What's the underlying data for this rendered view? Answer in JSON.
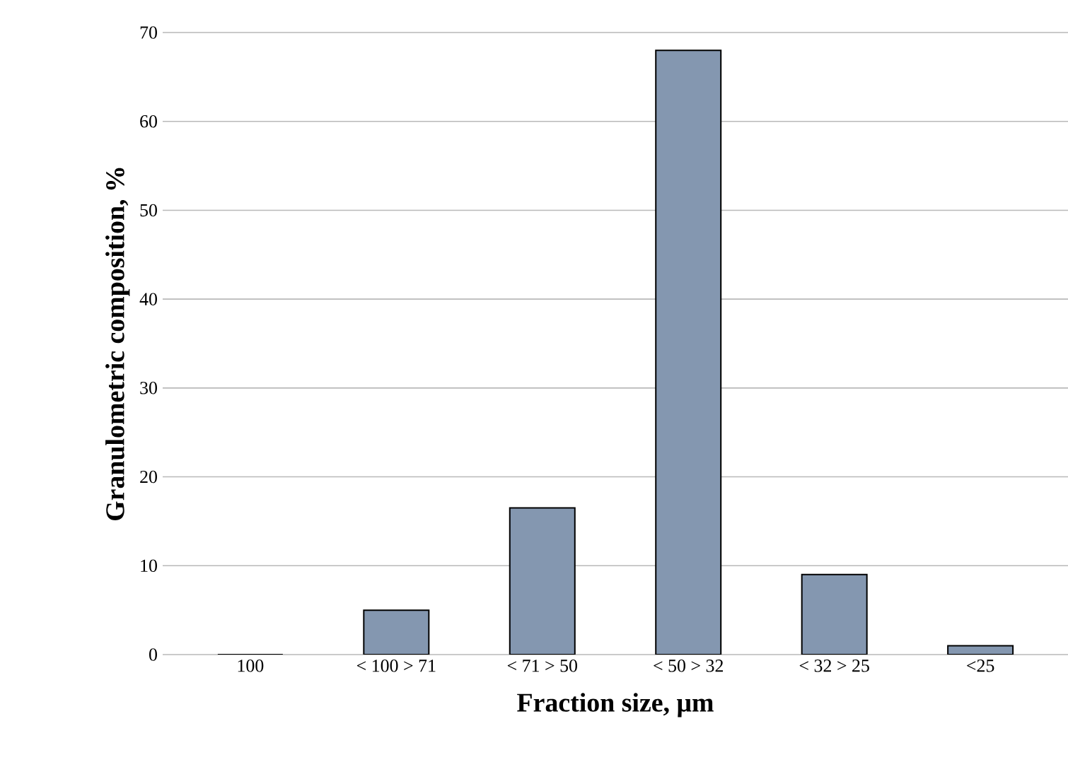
{
  "chart_data": {
    "type": "bar",
    "xlabel": "Fraction size, μm",
    "ylabel": "Granulometric composition, %",
    "categories": [
      "100",
      "< 100 > 71",
      "< 71 > 50",
      "< 50 > 32",
      "< 32 > 25",
      "<25"
    ],
    "values": [
      0,
      5,
      16.5,
      68,
      9,
      1
    ],
    "color": "#8497b0",
    "ylim": [
      0,
      70
    ],
    "yticks": [
      0,
      10,
      20,
      30,
      40,
      50,
      60,
      70
    ],
    "grid": "y"
  }
}
